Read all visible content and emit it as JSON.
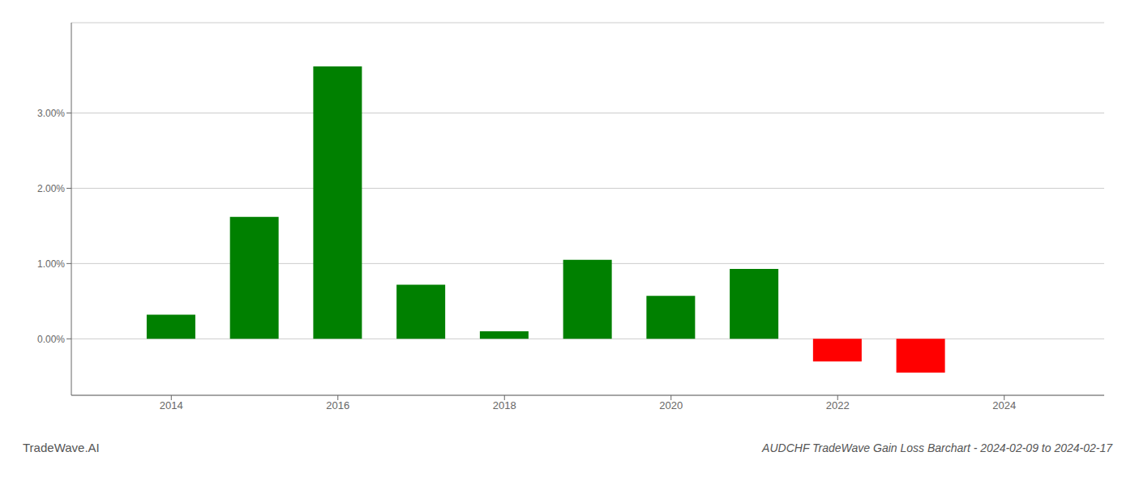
{
  "chart_data": {
    "type": "bar",
    "title": "AUDCHF TradeWave Gain Loss Barchart - 2024-02-09 to 2024-02-17",
    "annotations": [
      "TradeWave.AI"
    ],
    "x": [
      2014,
      2015,
      2016,
      2017,
      2018,
      2019,
      2020,
      2021,
      2022,
      2023
    ],
    "values": [
      0.0032,
      0.0162,
      0.0362,
      0.0072,
      0.001,
      0.0105,
      0.0057,
      0.0093,
      -0.003,
      -0.0045
    ],
    "colors": [
      "#008000",
      "#008000",
      "#008000",
      "#008000",
      "#008000",
      "#008000",
      "#008000",
      "#008000",
      "#ff0000",
      "#ff0000"
    ],
    "xlim": [
      2012.8,
      2025.2
    ],
    "xticks": [
      2014,
      2016,
      2018,
      2020,
      2022,
      2024
    ],
    "ylim": [
      -0.0075,
      0.042
    ],
    "yticks": [
      {
        "value": 0.0,
        "label": "0.00%"
      },
      {
        "value": 0.01,
        "label": "1.00%"
      },
      {
        "value": 0.02,
        "label": "2.00%"
      },
      {
        "value": 0.03,
        "label": "3.00%"
      }
    ],
    "grid": true
  }
}
